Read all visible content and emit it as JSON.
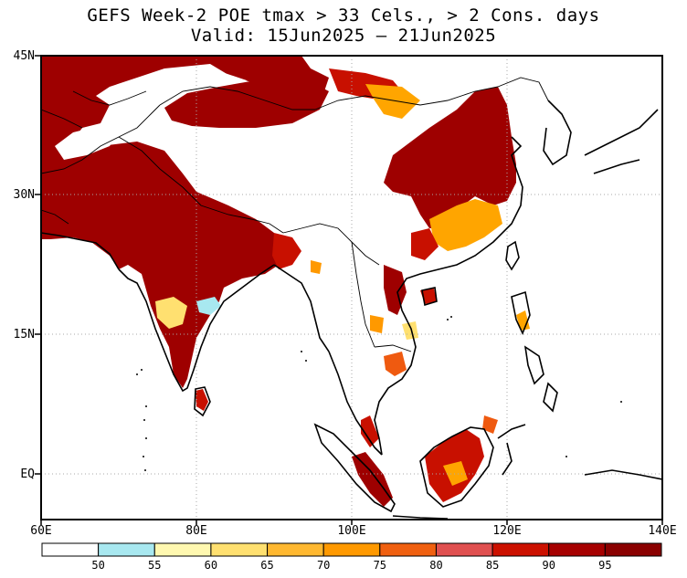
{
  "title_line1": "GEFS Week-2 POE tmax > 33 Cels., > 2 Cons. days",
  "title_line2": "Valid: 15Jun2025 – 21Jun2025",
  "lat_labels": [
    "45N",
    "30N",
    "15N",
    "EQ"
  ],
  "lon_labels": [
    "60E",
    "80E",
    "100E",
    "120E",
    "140E"
  ],
  "legend": {
    "thresholds": [
      "50",
      "55",
      "60",
      "65",
      "70",
      "75",
      "80",
      "85",
      "90",
      "95"
    ],
    "colors": [
      "#ffffff",
      "#a8e8f0",
      "#fff8b0",
      "#ffe070",
      "#ffb830",
      "#ff9900",
      "#f06010",
      "#e05050",
      "#cc1100",
      "#a60000",
      "#8a0000"
    ]
  },
  "colors": {
    "fill_95": "#9e0000",
    "fill_90": "#c81000",
    "fill_80": "#ef5a10",
    "fill_70": "#ffa500",
    "fill_60": "#ffe070",
    "fill_50": "#a8e8f0",
    "coast": "#000000",
    "grid": "#aaaaaa"
  }
}
